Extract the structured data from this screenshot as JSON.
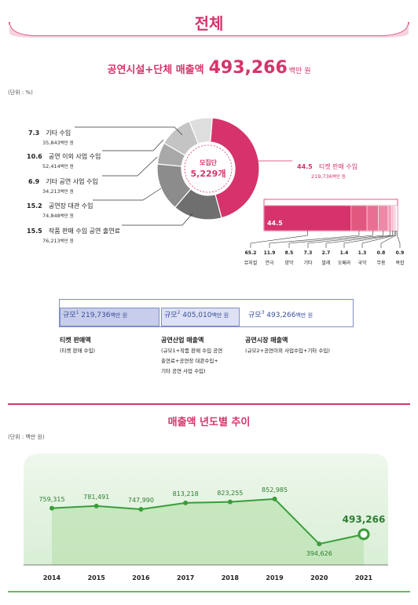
{
  "header": {
    "title": "전체"
  },
  "headline": {
    "label": "공연시설+단체 매출액",
    "value": "493,266",
    "unit": "백만 원"
  },
  "unit_note_1": "(단위 : %)",
  "donut": {
    "center_label": "모집단",
    "center_value": "5,229개",
    "slices": [
      {
        "pct": "44.5",
        "name": "티켓 판매 수입",
        "amount": "219,736",
        "amount_unit": "백만 원",
        "color": "#d6336c"
      },
      {
        "pct": "15.5",
        "name": "작품 판매 수입 공연 출연료",
        "amount": "76,213",
        "amount_unit": "백만 원",
        "color": "#6f6f6f"
      },
      {
        "pct": "15.2",
        "name": "공연장 대관 수입",
        "amount": "74,848",
        "amount_unit": "백만 원",
        "color": "#8c8c8c"
      },
      {
        "pct": "6.9",
        "name": "기타 공연 사업 수입",
        "amount": "34,213",
        "amount_unit": "백만 원",
        "color": "#a8a8a8"
      },
      {
        "pct": "10.6",
        "name": "공연 이외 사업 수입",
        "amount": "52,414",
        "amount_unit": "백만 원",
        "color": "#c4c4c4"
      },
      {
        "pct": "7.3",
        "name": "기타 수입",
        "amount": "35,843",
        "amount_unit": "백만 원",
        "color": "#dedede"
      }
    ]
  },
  "ticket_breakdown": {
    "total_pct": "44.5",
    "items": [
      {
        "pct": "65.2",
        "name": "뮤지컬",
        "color": "#d6336c"
      },
      {
        "pct": "11.9",
        "name": "연극",
        "color": "#e2577f"
      },
      {
        "pct": "8.5",
        "name": "양악",
        "color": "#e86f92"
      },
      {
        "pct": "7.3",
        "name": "기타",
        "color": "#ed88a6"
      },
      {
        "pct": "2.7",
        "name": "발레",
        "color": "#f2a1b9"
      },
      {
        "pct": "1.4",
        "name": "오페라",
        "color": "#f5b4c7"
      },
      {
        "pct": "1.3",
        "name": "국악",
        "color": "#f8c6d5"
      },
      {
        "pct": "0.8",
        "name": "무용",
        "color": "#fad6e0"
      },
      {
        "pct": "0.9",
        "name": "복합",
        "color": "#fce5ec"
      }
    ]
  },
  "scales": [
    {
      "label": "규모",
      "num": "1",
      "value": "219,736",
      "unit": "백만 원"
    },
    {
      "label": "규모",
      "num": "2",
      "value": "405,010",
      "unit": "백만 원"
    },
    {
      "label": "규모",
      "num": "3",
      "value": "493,266",
      "unit": "백만 원"
    }
  ],
  "scale_desc": [
    {
      "title": "티켓 판매액",
      "lines": [
        "(티켓 판매 수입)"
      ]
    },
    {
      "title": "공연산업 매출액",
      "lines": [
        "(규모1+작품 판매 수입 공연",
        "출연료+공연장 대관수입+",
        "기타 공연 사업 수입)"
      ]
    },
    {
      "title": "공연시장 매출액",
      "lines": [
        "(규모2+공연이외 사업수입+기타 수입)"
      ]
    }
  ],
  "trend": {
    "title": "매출액 년도별 추이",
    "unit_note": "(단위 : 백만 원)",
    "green": "#3a9d3a"
  },
  "chart_data": {
    "type": "area",
    "title": "매출액 년도별 추이",
    "ylabel": "백만 원",
    "categories": [
      "2014",
      "2015",
      "2016",
      "2017",
      "2018",
      "2019",
      "2020",
      "2021"
    ],
    "values": [
      759315,
      781491,
      747990,
      813218,
      823255,
      852985,
      394626,
      493266
    ],
    "value_labels": [
      "759,315",
      "781,491",
      "747,990",
      "813,218",
      "823,255",
      "852,985",
      "394,626",
      "493,266"
    ],
    "ylim": [
      0,
      1000000
    ],
    "grid": false
  }
}
